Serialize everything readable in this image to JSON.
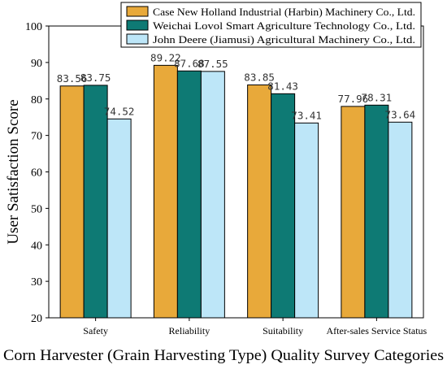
{
  "chart_data": {
    "type": "bar",
    "title": "",
    "xlabel": "Corn Harvester (Grain Harvesting Type) Quality Survey Categories",
    "ylabel": "User Satisfaction Score",
    "categories": [
      "Safety",
      "Reliability",
      "Suitability",
      "After-sales Service Status"
    ],
    "ylim": [
      20,
      100
    ],
    "yticks": [
      20,
      30,
      40,
      50,
      60,
      70,
      80,
      90,
      100
    ],
    "grid": false,
    "legend_position": "top-right",
    "series": [
      {
        "name": "Case New Holland Industrial (Harbin) Machinery Co., Ltd.",
        "color": "#E8A93A",
        "values": [
          83.56,
          89.22,
          83.85,
          77.96
        ],
        "labels": [
          "83.56",
          "89.22",
          "83.85",
          "77.96"
        ]
      },
      {
        "name": "Weichai Lovol Smart Agriculture Technology Co., Ltd.",
        "color": "#0E7A74",
        "values": [
          83.75,
          87.68,
          81.43,
          78.31
        ],
        "labels": [
          "83.75",
          "87.68",
          "81.43",
          "78.31"
        ]
      },
      {
        "name": "John Deere (Jiamusi) Agricultural Machinery Co., Ltd.",
        "color": "#BDE6F8",
        "values": [
          74.52,
          87.55,
          73.41,
          73.64
        ],
        "labels": [
          "74.52",
          "87.55",
          "73.41",
          "73.64"
        ]
      }
    ]
  }
}
